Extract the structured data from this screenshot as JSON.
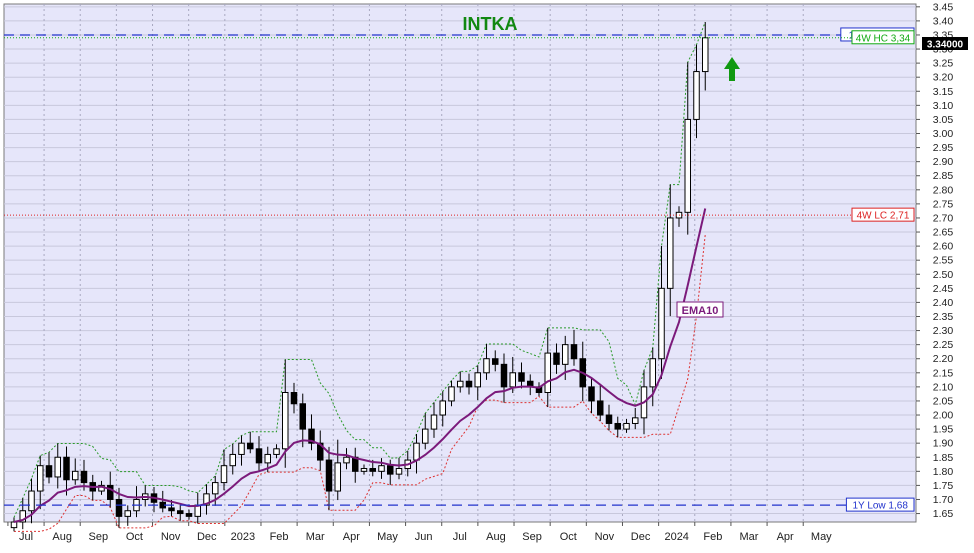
{
  "chart_data": {
    "type": "candlestick",
    "title": "INTKA",
    "ylim": [
      1.62,
      3.46
    ],
    "yticks": [
      "1.65",
      "1.70",
      "1.75",
      "1.80",
      "1.85",
      "1.90",
      "1.95",
      "2.00",
      "2.05",
      "2.10",
      "2.15",
      "2.20",
      "2.25",
      "2.30",
      "2.35",
      "2.40",
      "2.45",
      "2.50",
      "2.55",
      "2.60",
      "2.65",
      "2.70",
      "2.75",
      "2.80",
      "2.85",
      "2.90",
      "2.95",
      "3.00",
      "3.05",
      "3.10",
      "3.15",
      "3.20",
      "3.25",
      "3.30",
      "3.35",
      "3.40",
      "3.45"
    ],
    "xticks": [
      "Jul",
      "Aug",
      "Sep",
      "Oct",
      "Nov",
      "Dec",
      "2023",
      "Feb",
      "Mar",
      "Apr",
      "May",
      "Jun",
      "Jul",
      "Aug",
      "Sep",
      "Oct",
      "Nov",
      "Dec",
      "2024",
      "Feb",
      "Mar",
      "Apr",
      "May"
    ],
    "grid": true,
    "last_price": "3.34000",
    "reference_lines": [
      {
        "label": "1Y High 3,35",
        "value": 3.35,
        "style": "dashed",
        "color": "#2233cc"
      },
      {
        "label": "4W HC 3,34",
        "value": 3.34,
        "style": "dotted",
        "color": "#11aa11"
      },
      {
        "label": "4W LC 2,71",
        "value": 2.71,
        "style": "dotted",
        "color": "#dd2222"
      },
      {
        "label": "1Y Low 1,68",
        "value": 1.68,
        "style": "dashed",
        "color": "#2233cc"
      }
    ],
    "indicator_label": "EMA10",
    "signal": "up-arrow",
    "colors": {
      "background": "#e6e6fa",
      "ema": "#7b1a7b",
      "up_candle": "#ffffff",
      "down_candle": "#000000",
      "title": "#118811",
      "arrow": "#119911"
    },
    "weekly_closes": [
      1.62,
      1.66,
      1.73,
      1.82,
      1.78,
      1.85,
      1.77,
      1.8,
      1.76,
      1.73,
      1.75,
      1.7,
      1.64,
      1.66,
      1.7,
      1.72,
      1.69,
      1.67,
      1.66,
      1.65,
      1.64,
      1.68,
      1.72,
      1.76,
      1.82,
      1.86,
      1.9,
      1.88,
      1.83,
      1.86,
      1.88,
      2.08,
      2.04,
      1.95,
      1.9,
      1.84,
      1.73,
      1.83,
      1.85,
      1.8,
      1.81,
      1.8,
      1.82,
      1.79,
      1.81,
      1.84,
      1.9,
      1.95,
      2.0,
      2.05,
      2.1,
      2.12,
      2.1,
      2.15,
      2.2,
      2.18,
      2.1,
      2.15,
      2.12,
      2.1,
      2.08,
      2.22,
      2.18,
      2.25,
      2.2,
      2.1,
      2.05,
      2.0,
      1.97,
      1.95,
      1.97,
      1.99,
      2.1,
      2.2,
      2.45,
      2.7,
      2.72,
      3.05,
      3.22,
      3.34
    ]
  }
}
